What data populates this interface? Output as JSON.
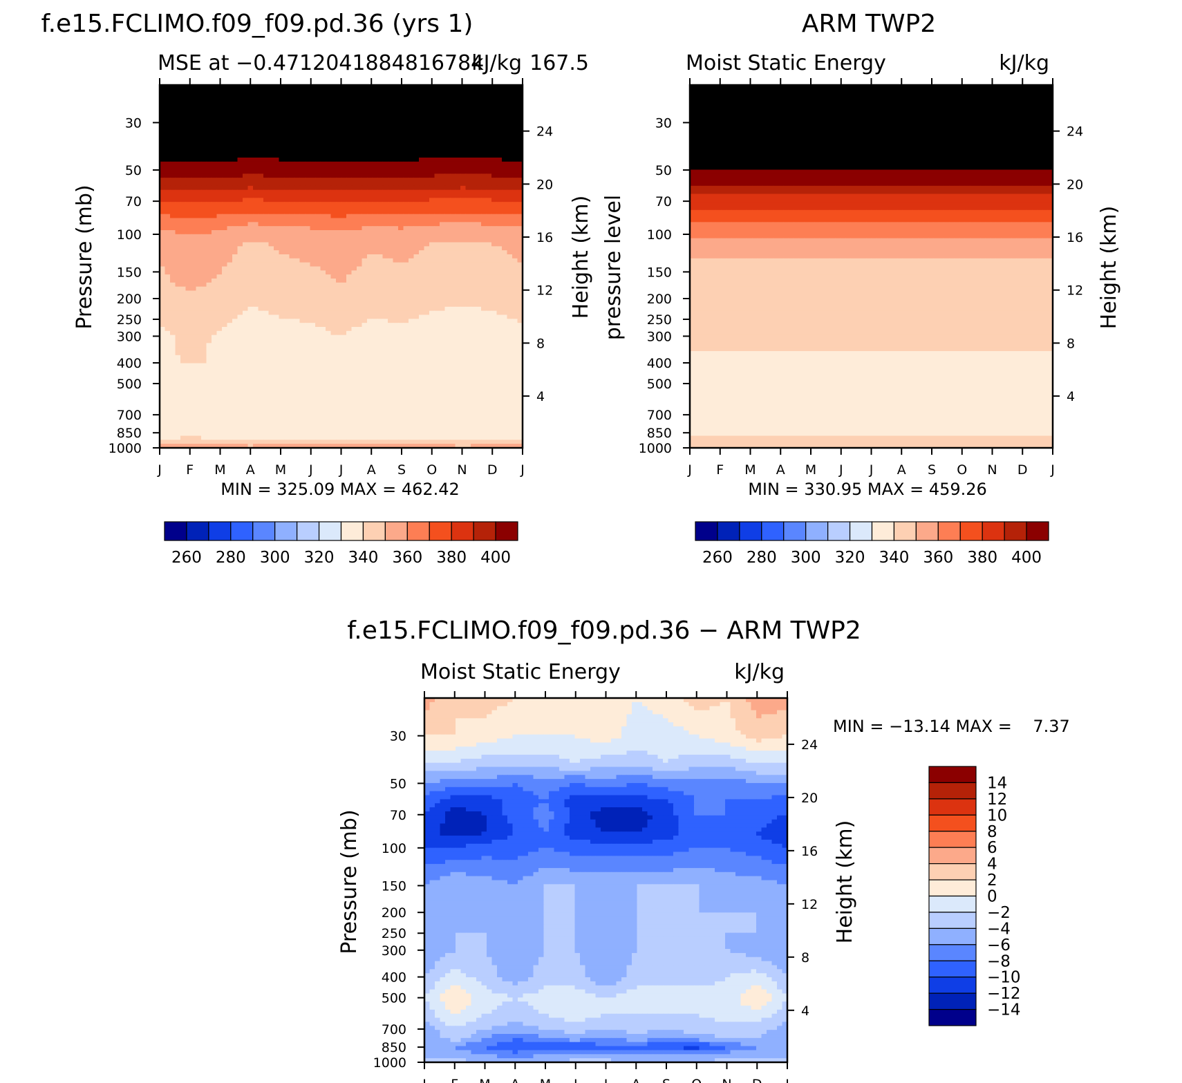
{
  "colors": {
    "model_obs_scale": [
      "#00008b",
      "#0022b8",
      "#0f3ee6",
      "#2f62ff",
      "#5a86ff",
      "#8fb0ff",
      "#b9ceff",
      "#dbe9fb",
      "#feecd9",
      "#fdd0b3",
      "#fca98a",
      "#fd7e54",
      "#f4501e",
      "#dc3310",
      "#b52208",
      "#8b0000"
    ],
    "diff_scale": [
      "#00008b",
      "#0022b8",
      "#0f3ee6",
      "#2f62ff",
      "#5a86ff",
      "#8fb0ff",
      "#b9ceff",
      "#dbe9fb",
      "#feecd9",
      "#fdd0b3",
      "#fca98a",
      "#fd7e54",
      "#f4501e",
      "#dc3310",
      "#b52208",
      "#8b0000"
    ]
  },
  "chart_data": [
    {
      "id": "model",
      "type": "heatmap",
      "title": "f.e15.FCLIMO.f09_f09.pd.36 (yrs 1)",
      "subtitle_left": "MSE at −0.4712041884816784",
      "subtitle_right": "kJ/kg",
      "subtitle_overlap": "167.5",
      "ylabel": "Pressure (mb)",
      "ylabel_right": "Height (km)",
      "months": [
        "J",
        "F",
        "M",
        "A",
        "M",
        "J",
        "J",
        "A",
        "S",
        "O",
        "N",
        "D",
        "J"
      ],
      "pressure_ticks": [
        "30",
        "50",
        "70",
        "100",
        "150",
        "200",
        "250",
        "300",
        "400",
        "500",
        "700",
        "850",
        "1000"
      ],
      "height_ticks": [
        "24",
        "20",
        "16",
        "12",
        "8",
        "4"
      ],
      "stats": "MIN = 325.09 MAX = 462.42",
      "colorbar_labels": [
        "260",
        "280",
        "300",
        "320",
        "340",
        "360",
        "380",
        "400"
      ],
      "levels": [
        250,
        260,
        270,
        280,
        290,
        300,
        310,
        320,
        330,
        340,
        350,
        360,
        370,
        380,
        390,
        400
      ],
      "profile": [
        [
          20,
          440
        ],
        [
          50,
          395
        ],
        [
          58,
          385
        ],
        [
          65,
          375
        ],
        [
          75,
          365
        ],
        [
          90,
          352
        ],
        [
          110,
          342
        ],
        [
          170,
          338
        ],
        [
          200,
          334
        ],
        [
          300,
          328
        ],
        [
          500,
          327
        ],
        [
          650,
          326.5
        ],
        [
          750,
          323
        ],
        [
          850,
          324
        ],
        [
          930,
          332
        ],
        [
          1000,
          345
        ]
      ],
      "monthly_offset": [
        0,
        4,
        1,
        -3,
        -1,
        0,
        2,
        -1,
        0,
        -2,
        -3,
        -2,
        0
      ]
    },
    {
      "id": "obs",
      "type": "heatmap",
      "title": "ARM TWP2",
      "subtitle_left": "Moist Static Energy",
      "subtitle_right": "kJ/kg",
      "ylabel": "pressure level",
      "ylabel_right": "Height (km)",
      "months": [
        "J",
        "F",
        "M",
        "A",
        "M",
        "J",
        "J",
        "A",
        "S",
        "O",
        "N",
        "D",
        "J"
      ],
      "pressure_ticks": [
        "30",
        "50",
        "70",
        "100",
        "150",
        "200",
        "250",
        "300",
        "400",
        "500",
        "700",
        "850",
        "1000"
      ],
      "height_ticks": [
        "24",
        "20",
        "16",
        "12",
        "8",
        "4"
      ],
      "stats": "MIN = 330.95 MAX = 459.26",
      "colorbar_labels": [
        "260",
        "280",
        "300",
        "320",
        "340",
        "360",
        "380",
        "400"
      ],
      "levels": [
        250,
        260,
        270,
        280,
        290,
        300,
        310,
        320,
        330,
        340,
        350,
        360,
        370,
        380,
        390,
        400
      ],
      "profile": [
        [
          20,
          440
        ],
        [
          55,
          395
        ],
        [
          62,
          385
        ],
        [
          70,
          375
        ],
        [
          85,
          362
        ],
        [
          110,
          348
        ],
        [
          130,
          340
        ],
        [
          250,
          337
        ],
        [
          330,
          331
        ],
        [
          400,
          328
        ],
        [
          600,
          326
        ],
        [
          850,
          328
        ],
        [
          950,
          334
        ],
        [
          1000,
          336
        ]
      ],
      "monthly_offset": [
        0,
        0,
        0,
        0,
        0,
        0,
        0,
        0,
        0,
        0,
        0,
        0,
        0
      ]
    },
    {
      "id": "diff",
      "type": "heatmap",
      "title": "f.e15.FCLIMO.f09_f09.pd.36 − ARM TWP2",
      "subtitle_left": "Moist Static Energy",
      "subtitle_right": "kJ/kg",
      "ylabel": "Pressure (mb)",
      "ylabel_right": "Height (km)",
      "months": [
        "J",
        "F",
        "M",
        "A",
        "M",
        "J",
        "J",
        "A",
        "S",
        "O",
        "N",
        "D",
        "J"
      ],
      "pressure_ticks": [
        "30",
        "50",
        "70",
        "100",
        "150",
        "200",
        "250",
        "300",
        "400",
        "500",
        "700",
        "850",
        "1000"
      ],
      "height_ticks": [
        "24",
        "20",
        "16",
        "12",
        "8",
        "4"
      ],
      "stats": "MIN = −13.14 MAX =    7.37",
      "colorbar_labels": [
        "14",
        "12",
        "10",
        "8",
        "6",
        "4",
        "2",
        "0",
        "−2",
        "−4",
        "−6",
        "−8",
        "−10",
        "−12",
        "−14"
      ],
      "levels": [
        -14,
        -12,
        -10,
        -8,
        -6,
        -4,
        -2,
        0,
        2,
        4,
        6,
        8,
        10,
        12,
        14
      ],
      "grid_pressures": [
        20,
        30,
        40,
        50,
        60,
        70,
        85,
        100,
        150,
        200,
        250,
        300,
        400,
        500,
        600,
        700,
        775,
        850,
        925,
        1000
      ],
      "grid": [
        [
          5,
          2,
          3,
          2,
          1,
          2,
          2,
          0,
          1,
          3,
          2,
          5,
          5
        ],
        [
          2,
          2,
          1,
          0,
          0,
          0,
          1,
          -1,
          -1,
          0,
          1,
          3,
          2
        ],
        [
          -2,
          -2,
          -3,
          -3,
          -3,
          -2,
          -3,
          -3,
          -2,
          -3,
          -3,
          -2,
          -2
        ],
        [
          -6,
          -7,
          -7,
          -8,
          -7,
          -8,
          -7,
          -8,
          -7,
          -7,
          -7,
          -6,
          -6
        ],
        [
          -9,
          -11,
          -11,
          -9,
          -8,
          -11,
          -11,
          -11,
          -10,
          -8,
          -8,
          -8,
          -9
        ],
        [
          -10,
          -13,
          -12,
          -9,
          -7,
          -11,
          -13,
          -13,
          -11,
          -8,
          -8,
          -9,
          -10
        ],
        [
          -11,
          -13,
          -12,
          -10,
          -8,
          -11,
          -12,
          -12,
          -11,
          -9,
          -9,
          -10,
          -12
        ],
        [
          -10,
          -10,
          -9,
          -9,
          -8,
          -9,
          -9,
          -9,
          -9,
          -8,
          -8,
          -9,
          -10
        ],
        [
          -6,
          -4,
          -5,
          -6,
          -4,
          -4,
          -4,
          -4,
          -4,
          -4,
          -5,
          -5,
          -6
        ],
        [
          -5,
          -4,
          -5,
          -6,
          -4,
          -4,
          -5,
          -4,
          -4,
          -4,
          -4,
          -4,
          -5
        ],
        [
          -5,
          -4,
          -4,
          -6,
          -4,
          -4,
          -6,
          -4,
          -4,
          -4,
          -4,
          -4,
          -5
        ],
        [
          -6,
          -4,
          -4,
          -6,
          -4,
          -4,
          -6,
          -4,
          -4,
          -4,
          -4,
          -5,
          -6
        ],
        [
          -4,
          -1,
          -3,
          -5,
          -3,
          -3,
          -6,
          -3,
          -3,
          -3,
          -2,
          -1,
          -4
        ],
        [
          -2,
          2,
          -1,
          -2,
          -1,
          -1,
          -2,
          -1,
          -1,
          -1,
          -1,
          2,
          -2
        ],
        [
          -3,
          0,
          -2,
          -3,
          -2,
          -1,
          -2,
          -2,
          -2,
          -2,
          -1,
          -1,
          -3
        ],
        [
          -5,
          -2,
          -4,
          -5,
          -4,
          -3,
          -4,
          -3,
          -4,
          -3,
          -3,
          -3,
          -5
        ],
        [
          -6,
          -3,
          -6,
          -8,
          -6,
          -5,
          -6,
          -5,
          -6,
          -5,
          -4,
          -4,
          -6
        ],
        [
          -6,
          -6,
          -8,
          -10,
          -10,
          -10,
          -9,
          -9,
          -10,
          -11,
          -8,
          -6,
          -6
        ],
        [
          -5,
          -5,
          -6,
          -7,
          -6,
          -6,
          -6,
          -6,
          -6,
          -6,
          -5,
          -5,
          -5
        ],
        [
          -3,
          -3,
          -4,
          -4,
          -4,
          -3,
          -3,
          -4,
          -4,
          -4,
          -3,
          -3,
          -3
        ]
      ]
    }
  ]
}
